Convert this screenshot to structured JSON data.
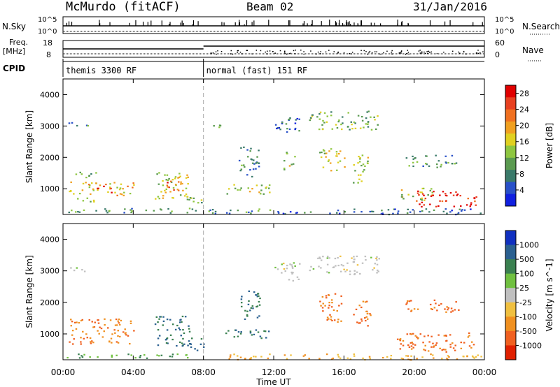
{
  "header": {
    "station": "McMurdo (fitACF)",
    "beam": "Beam 02",
    "date": "31/Jan/2016"
  },
  "top_panels": {
    "nsky_label": "N.Sky",
    "nsky_ticks": [
      "10^5",
      "10^0"
    ],
    "nsearch_label": "N.Search",
    "nsearch_ticks": [
      "10^5",
      "10^0"
    ],
    "freq_label_1": "Freq.",
    "freq_label_2": "[MHz]",
    "freq_ticks": [
      "18",
      "8"
    ],
    "nave_label": "Nave",
    "nave_ticks": [
      "60",
      "0"
    ],
    "cpid_label": "CPID",
    "cpid_segments": [
      {
        "label": "themis 3300 RF",
        "start_hour": 0
      },
      {
        "label": "normal (fast) 151 RF",
        "start_hour": 8
      }
    ]
  },
  "chart_data": [
    {
      "type": "heatmap",
      "title": "",
      "xlabel": "Time UT",
      "ylabel": "Slant Range [km]",
      "xlim": [
        0,
        24
      ],
      "ylim": [
        180,
        4500
      ],
      "xtick_labels": [
        "00:00",
        "04:00",
        "08:00",
        "12:00",
        "16:00",
        "20:00",
        "00:00"
      ],
      "ytick_labels": [
        "1000",
        "2000",
        "3000",
        "4000"
      ],
      "colorbar": {
        "label": "Power [dB]",
        "ticks": [
          "4",
          "8",
          "12",
          "16",
          "20",
          "24",
          "28"
        ],
        "range": [
          0,
          30
        ],
        "colors": [
          "#1020e0",
          "#2850c8",
          "#3a7a6a",
          "#5a9a50",
          "#8ec640",
          "#e0d020",
          "#f0a020",
          "#f07020",
          "#e84020",
          "#e00000"
        ]
      },
      "echo_regions": [
        {
          "t0": 0.2,
          "t1": 7.8,
          "r0": 250,
          "r1": 400,
          "level": 10
        },
        {
          "t0": 0.3,
          "t1": 1.5,
          "r0": 3000,
          "r1": 3150,
          "level": 8
        },
        {
          "t0": 0.3,
          "t1": 4.0,
          "r0": 800,
          "r1": 1250,
          "level": 18
        },
        {
          "t0": 1.8,
          "t1": 2.8,
          "r0": 900,
          "r1": 1100,
          "level": 26
        },
        {
          "t0": 0.5,
          "t1": 2.0,
          "r0": 1350,
          "r1": 1550,
          "level": 10
        },
        {
          "t0": 0.7,
          "t1": 1.8,
          "r0": 600,
          "r1": 800,
          "level": 14
        },
        {
          "t0": 5.2,
          "t1": 7.2,
          "r0": 700,
          "r1": 1600,
          "level": 16
        },
        {
          "t0": 5.8,
          "t1": 6.8,
          "r0": 900,
          "r1": 1300,
          "level": 24
        },
        {
          "t0": 7.0,
          "t1": 8.0,
          "r0": 500,
          "r1": 900,
          "level": 12
        },
        {
          "t0": 8.2,
          "t1": 12.0,
          "r0": 200,
          "r1": 380,
          "level": 9
        },
        {
          "t0": 9.0,
          "t1": 11.8,
          "r0": 850,
          "r1": 1150,
          "level": 14
        },
        {
          "t0": 8.5,
          "t1": 9.3,
          "r0": 2900,
          "r1": 3100,
          "level": 8
        },
        {
          "t0": 10.0,
          "t1": 11.2,
          "r0": 1400,
          "r1": 2400,
          "level": 8
        },
        {
          "t0": 12.0,
          "t1": 13.5,
          "r0": 2700,
          "r1": 3300,
          "level": 6
        },
        {
          "t0": 12.5,
          "t1": 13.2,
          "r0": 1600,
          "r1": 2200,
          "level": 14
        },
        {
          "t0": 14.0,
          "t1": 18.0,
          "r0": 2900,
          "r1": 3500,
          "level": 12
        },
        {
          "t0": 14.5,
          "t1": 16.0,
          "r0": 1600,
          "r1": 2300,
          "level": 16
        },
        {
          "t0": 16.5,
          "t1": 17.5,
          "r0": 1200,
          "r1": 2100,
          "level": 14
        },
        {
          "t0": 19.5,
          "t1": 22.5,
          "r0": 1700,
          "r1": 2100,
          "level": 10
        },
        {
          "t0": 19.0,
          "t1": 21.0,
          "r0": 650,
          "r1": 1050,
          "level": 14
        },
        {
          "t0": 20.0,
          "t1": 23.6,
          "r0": 450,
          "r1": 950,
          "level": 28
        },
        {
          "t0": 12.0,
          "t1": 24.0,
          "r0": 200,
          "r1": 380,
          "level": 6
        }
      ]
    },
    {
      "type": "heatmap",
      "title": "",
      "xlabel": "Time UT",
      "ylabel": "Slant Range [km]",
      "xlim": [
        0,
        24
      ],
      "ylim": [
        180,
        4500
      ],
      "xtick_labels": [
        "00:00",
        "04:00",
        "08:00",
        "12:00",
        "16:00",
        "20:00",
        "00:00"
      ],
      "ytick_labels": [
        "1000",
        "2000",
        "3000",
        "4000"
      ],
      "colorbar": {
        "label": "Velocity [m s^-1]",
        "ticks": [
          "1000",
          "500",
          "100",
          "25",
          "-25",
          "-100",
          "-500",
          "-1000"
        ],
        "colors": [
          "#1030c0",
          "#2a6090",
          "#3a8050",
          "#70c040",
          "#c0c0c0",
          "#f0c040",
          "#f09020",
          "#f06020",
          "#e02000"
        ]
      },
      "echo_regions": [
        {
          "t0": 0.2,
          "t1": 7.8,
          "r0": 250,
          "r1": 400,
          "velocity": 60
        },
        {
          "t0": 0.3,
          "t1": 1.5,
          "r0": 3000,
          "r1": 3150,
          "velocity": 0
        },
        {
          "t0": 0.3,
          "t1": 4.0,
          "r0": 700,
          "r1": 1500,
          "velocity": -300
        },
        {
          "t0": 5.2,
          "t1": 7.2,
          "r0": 600,
          "r1": 1600,
          "velocity": 300
        },
        {
          "t0": 7.0,
          "t1": 8.0,
          "r0": 500,
          "r1": 900,
          "velocity": 300
        },
        {
          "t0": 9.0,
          "t1": 11.8,
          "r0": 850,
          "r1": 1150,
          "velocity": 300
        },
        {
          "t0": 10.0,
          "t1": 11.2,
          "r0": 1400,
          "r1": 2400,
          "velocity": 300
        },
        {
          "t0": 12.0,
          "t1": 13.5,
          "r0": 2700,
          "r1": 3300,
          "velocity": 0
        },
        {
          "t0": 14.0,
          "t1": 18.0,
          "r0": 2900,
          "r1": 3500,
          "velocity": 0
        },
        {
          "t0": 14.5,
          "t1": 16.0,
          "r0": 1400,
          "r1": 2300,
          "velocity": -300
        },
        {
          "t0": 16.5,
          "t1": 17.5,
          "r0": 1200,
          "r1": 2100,
          "velocity": -300
        },
        {
          "t0": 19.5,
          "t1": 22.5,
          "r0": 1700,
          "r1": 2100,
          "velocity": -400
        },
        {
          "t0": 19.0,
          "t1": 23.6,
          "r0": 450,
          "r1": 1050,
          "velocity": -400
        },
        {
          "t0": 8.2,
          "t1": 24.0,
          "r0": 200,
          "r1": 380,
          "velocity": -60
        }
      ]
    }
  ]
}
